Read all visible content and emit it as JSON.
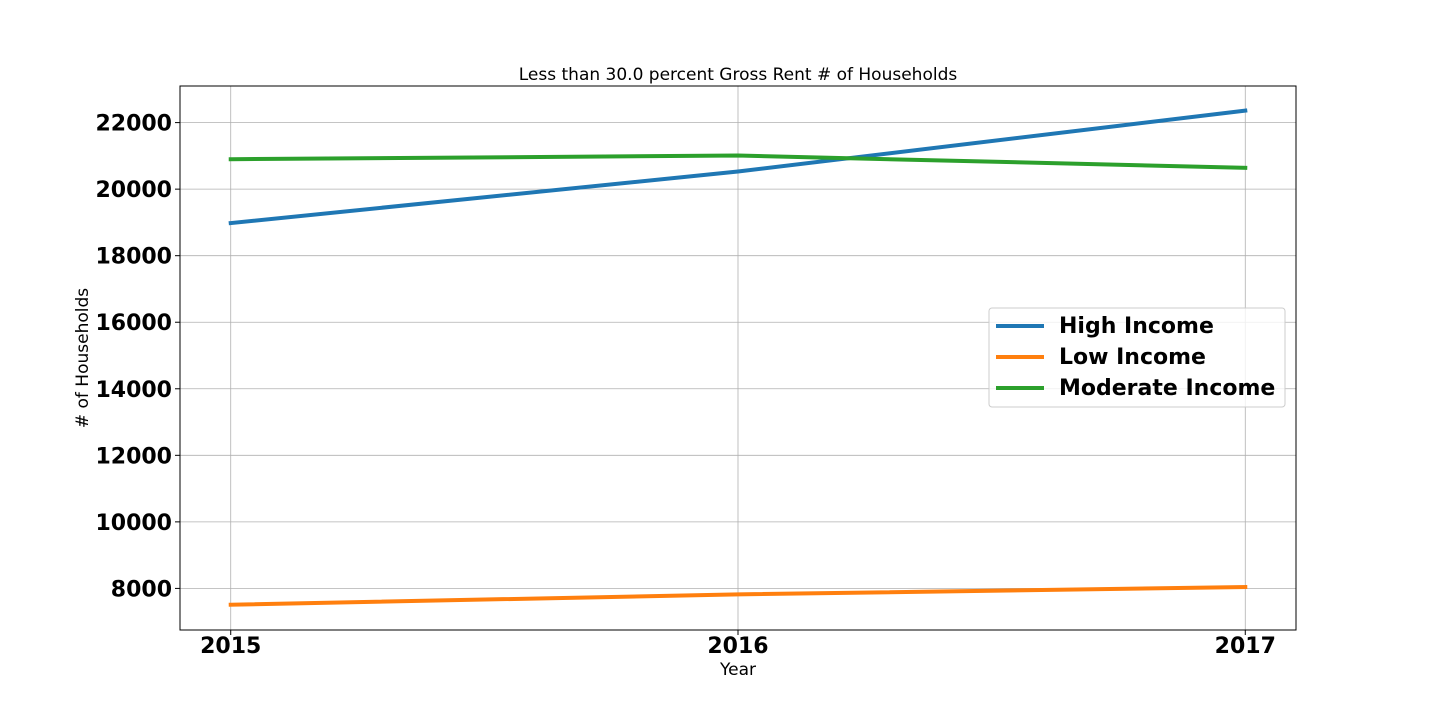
{
  "chart_data": {
    "type": "line",
    "title": "Less than 30.0 percent Gross Rent # of Households",
    "xlabel": "Year",
    "ylabel": "# of Households",
    "x": [
      2015,
      2016,
      2017
    ],
    "x_tick_labels": [
      "2015",
      "2016",
      "2017"
    ],
    "ylim": [
      6750,
      23100
    ],
    "y_ticks": [
      8000,
      10000,
      12000,
      14000,
      16000,
      18000,
      20000,
      22000
    ],
    "y_tick_labels": [
      "8000",
      "10000",
      "12000",
      "14000",
      "16000",
      "18000",
      "20000",
      "22000"
    ],
    "grid": true,
    "legend_position": "center-right",
    "series": [
      {
        "name": "High Income",
        "color": "#1f77b4",
        "values": [
          18980,
          20530,
          22360
        ]
      },
      {
        "name": "Low Income",
        "color": "#ff7f0e",
        "values": [
          7510,
          7820,
          8040
        ]
      },
      {
        "name": "Moderate Income",
        "color": "#2ca02c",
        "values": [
          20900,
          21010,
          20640
        ]
      }
    ]
  }
}
